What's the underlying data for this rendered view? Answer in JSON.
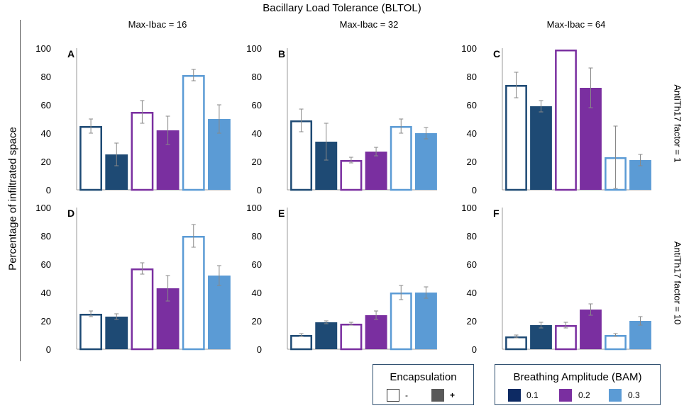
{
  "figure": {
    "title": "Bacillary Load Tolerance (BLTOL)",
    "ylabel": "Percentage of infiltrated space",
    "columns": [
      "Max-Ibac = 16",
      "Max-Ibac = 32",
      "Max-Ibac = 64"
    ],
    "rows": [
      "AntiTh17 factor = 1",
      "AntiTh17 factor = 10"
    ]
  },
  "colors": {
    "bam_0_1": "#1e4a74",
    "bam_0_2": "#7a2fa0",
    "bam_0_3": "#5b9bd5",
    "bam_0_1_swatch": "#0d2a63",
    "encaps_plus": "#595959"
  },
  "legend": {
    "encapsulation": {
      "title": "Encapsulation",
      "minus": "-",
      "plus": "+"
    },
    "bam": {
      "title": "Breathing Amplitude (BAM)",
      "items": [
        "0.1",
        "0.2",
        "0.3"
      ]
    }
  },
  "chart_data": [
    {
      "type": "bar",
      "panel": "A",
      "ylim": [
        0,
        100
      ],
      "yticks": [
        "0",
        "20",
        "40",
        "60",
        "80",
        "100"
      ],
      "bars": [
        {
          "bam": "0.1",
          "encapsulation": "-",
          "value": 45,
          "err": 5
        },
        {
          "bam": "0.1",
          "encapsulation": "+",
          "value": 25,
          "err": 8
        },
        {
          "bam": "0.2",
          "encapsulation": "-",
          "value": 55,
          "err": 8
        },
        {
          "bam": "0.2",
          "encapsulation": "+",
          "value": 42,
          "err": 10
        },
        {
          "bam": "0.3",
          "encapsulation": "-",
          "value": 81,
          "err": 4
        },
        {
          "bam": "0.3",
          "encapsulation": "+",
          "value": 50,
          "err": 10
        }
      ]
    },
    {
      "type": "bar",
      "panel": "B",
      "ylim": [
        0,
        100
      ],
      "yticks": [
        "0",
        "20",
        "40",
        "60",
        "80",
        "100"
      ],
      "bars": [
        {
          "bam": "0.1",
          "encapsulation": "-",
          "value": 49,
          "err": 8
        },
        {
          "bam": "0.1",
          "encapsulation": "+",
          "value": 34,
          "err": 13
        },
        {
          "bam": "0.2",
          "encapsulation": "-",
          "value": 21,
          "err": 2
        },
        {
          "bam": "0.2",
          "encapsulation": "+",
          "value": 27,
          "err": 3
        },
        {
          "bam": "0.3",
          "encapsulation": "-",
          "value": 45,
          "err": 5
        },
        {
          "bam": "0.3",
          "encapsulation": "+",
          "value": 40,
          "err": 4
        }
      ]
    },
    {
      "type": "bar",
      "panel": "C",
      "ylim": [
        0,
        100
      ],
      "yticks": [
        "0",
        "20",
        "40",
        "60",
        "80",
        "100"
      ],
      "bars": [
        {
          "bam": "0.1",
          "encapsulation": "-",
          "value": 74,
          "err": 9
        },
        {
          "bam": "0.1",
          "encapsulation": "+",
          "value": 59,
          "err": 4
        },
        {
          "bam": "0.2",
          "encapsulation": "-",
          "value": 99,
          "err": 0
        },
        {
          "bam": "0.2",
          "encapsulation": "+",
          "value": 72,
          "err": 14
        },
        {
          "bam": "0.3",
          "encapsulation": "-",
          "value": 23,
          "err": 22
        },
        {
          "bam": "0.3",
          "encapsulation": "+",
          "value": 21,
          "err": 4
        }
      ]
    },
    {
      "type": "bar",
      "panel": "D",
      "ylim": [
        0,
        100
      ],
      "yticks": [
        "0",
        "20",
        "40",
        "60",
        "80",
        "100"
      ],
      "bars": [
        {
          "bam": "0.1",
          "encapsulation": "-",
          "value": 25,
          "err": 2
        },
        {
          "bam": "0.1",
          "encapsulation": "+",
          "value": 23,
          "err": 2
        },
        {
          "bam": "0.2",
          "encapsulation": "-",
          "value": 57,
          "err": 4
        },
        {
          "bam": "0.2",
          "encapsulation": "+",
          "value": 43,
          "err": 9
        },
        {
          "bam": "0.3",
          "encapsulation": "-",
          "value": 80,
          "err": 8
        },
        {
          "bam": "0.3",
          "encapsulation": "+",
          "value": 52,
          "err": 7
        }
      ]
    },
    {
      "type": "bar",
      "panel": "E",
      "ylim": [
        0,
        100
      ],
      "yticks": [
        "0",
        "20",
        "40",
        "60",
        "80",
        "100"
      ],
      "bars": [
        {
          "bam": "0.1",
          "encapsulation": "-",
          "value": 10,
          "err": 1
        },
        {
          "bam": "0.1",
          "encapsulation": "+",
          "value": 19,
          "err": 1
        },
        {
          "bam": "0.2",
          "encapsulation": "-",
          "value": 18,
          "err": 1
        },
        {
          "bam": "0.2",
          "encapsulation": "+",
          "value": 24,
          "err": 3
        },
        {
          "bam": "0.3",
          "encapsulation": "-",
          "value": 40,
          "err": 5
        },
        {
          "bam": "0.3",
          "encapsulation": "+",
          "value": 40,
          "err": 4
        }
      ]
    },
    {
      "type": "bar",
      "panel": "F",
      "ylim": [
        0,
        100
      ],
      "yticks": [
        "0",
        "20",
        "40",
        "60",
        "80",
        "100"
      ],
      "bars": [
        {
          "bam": "0.1",
          "encapsulation": "-",
          "value": 9,
          "err": 1
        },
        {
          "bam": "0.1",
          "encapsulation": "+",
          "value": 17,
          "err": 2
        },
        {
          "bam": "0.2",
          "encapsulation": "-",
          "value": 17,
          "err": 2
        },
        {
          "bam": "0.2",
          "encapsulation": "+",
          "value": 28,
          "err": 4
        },
        {
          "bam": "0.3",
          "encapsulation": "-",
          "value": 10,
          "err": 1
        },
        {
          "bam": "0.3",
          "encapsulation": "+",
          "value": 20,
          "err": 3
        }
      ]
    }
  ]
}
